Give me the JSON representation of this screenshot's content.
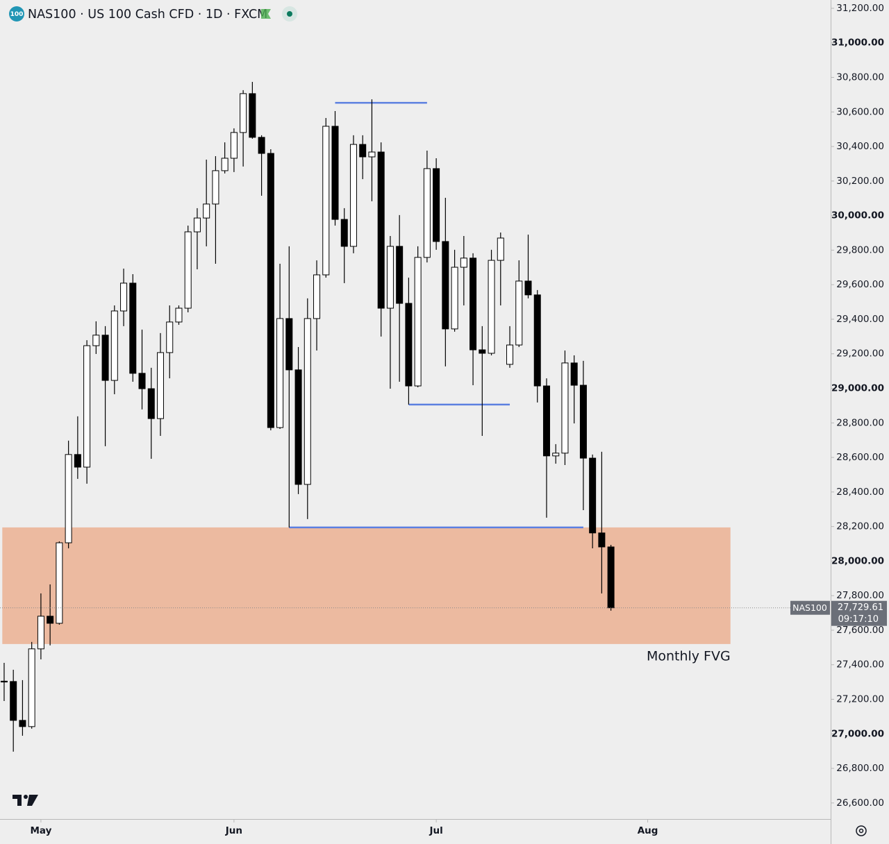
{
  "chart_data": {
    "type": "candlestick",
    "title": "NAS100 · US 100 Cash CFD · 1D · FXCM",
    "symbol_badge": "100",
    "ylim": [
      26507,
      31248
    ],
    "yticks": [
      {
        "value": 26600,
        "label": "26,600.00"
      },
      {
        "value": 26800,
        "label": "26,800.00"
      },
      {
        "value": 27000,
        "label": "27,000.00"
      },
      {
        "value": 27200,
        "label": "27,200.00"
      },
      {
        "value": 27400,
        "label": "27,400.00"
      },
      {
        "value": 27600,
        "label": "27,600.00"
      },
      {
        "value": 27800,
        "label": "27,800.00"
      },
      {
        "value": 28000,
        "label": "28,000.00"
      },
      {
        "value": 28200,
        "label": "28,200.00"
      },
      {
        "value": 28400,
        "label": "28,400.00"
      },
      {
        "value": 28600,
        "label": "28,600.00"
      },
      {
        "value": 28800,
        "label": "28,800.00"
      },
      {
        "value": 29000,
        "label": "29,000.00"
      },
      {
        "value": 29200,
        "label": "29,200.00"
      },
      {
        "value": 29400,
        "label": "29,400.00"
      },
      {
        "value": 29600,
        "label": "29,600.00"
      },
      {
        "value": 29800,
        "label": "29,800.00"
      },
      {
        "value": 30000,
        "label": "30,000.00"
      },
      {
        "value": 30200,
        "label": "30,200.00"
      },
      {
        "value": 30400,
        "label": "30,400.00"
      },
      {
        "value": 30600,
        "label": "30,600.00"
      },
      {
        "value": 30800,
        "label": "30,800.00"
      },
      {
        "value": 31000,
        "label": "31,000.00"
      },
      {
        "value": 31200,
        "label": "31,200.00"
      }
    ],
    "xlim": [
      -0.45,
      89.9
    ],
    "xticks": [
      {
        "value": 4,
        "label": "May"
      },
      {
        "value": 25,
        "label": "Jun"
      },
      {
        "value": 47,
        "label": "Jul"
      },
      {
        "value": 70,
        "label": "Aug"
      }
    ],
    "up_color": "#ffffff",
    "down_color": "#000000",
    "open": [
      27305,
      27303,
      27078,
      27042,
      27492,
      27681,
      27640,
      28106,
      28617,
      28544,
      29247,
      29308,
      29046,
      29448,
      29609,
      29087,
      28998,
      28825,
      29207,
      29384,
      29464,
      29906,
      29986,
      30067,
      30260,
      30332,
      30481,
      30706,
      30453,
      30360,
      28773,
      29404,
      29107,
      28444,
      29404,
      29657,
      30517,
      29978,
      29822,
      30412,
      30340,
      30368,
      29464,
      29822,
      29492,
      29014,
      29758,
      30272,
      29850,
      29344,
      29701,
      29754,
      29223,
      29203,
      29741,
      29139,
      29251,
      29621,
      29541,
      29014,
      28609,
      28625,
      29147,
      29018,
      28596,
      28163,
      28082
    ],
    "high": [
      27411,
      27371,
      27311,
      27532,
      27813,
      27865,
      28114,
      28697,
      28838,
      29279,
      29388,
      29360,
      29480,
      29693,
      29661,
      29340,
      29119,
      29320,
      29480,
      29480,
      29942,
      30043,
      30324,
      30344,
      30424,
      30505,
      30726,
      30774,
      30465,
      30384,
      29721,
      29822,
      29239,
      29521,
      29741,
      30565,
      30605,
      30043,
      30465,
      30465,
      30673,
      30424,
      29882,
      30003,
      29641,
      29822,
      30376,
      30332,
      30103,
      29802,
      29882,
      29782,
      29360,
      29802,
      29902,
      29360,
      29741,
      29890,
      29569,
      29058,
      28677,
      29219,
      29191,
      29159,
      28617,
      28633,
      28094
    ],
    "low": [
      27190,
      26897,
      26989,
      27030,
      27431,
      27512,
      27632,
      28074,
      28476,
      28448,
      29199,
      28665,
      28966,
      29360,
      29038,
      28878,
      28592,
      28725,
      29058,
      29368,
      29440,
      29689,
      29822,
      29721,
      30244,
      30252,
      30284,
      30445,
      30115,
      28757,
      28765,
      28195,
      28388,
      28243,
      29219,
      29641,
      29942,
      29609,
      29782,
      30211,
      30083,
      29300,
      28998,
      29038,
      28906,
      29006,
      29729,
      29802,
      29127,
      29328,
      29480,
      29018,
      28725,
      29191,
      29480,
      29119,
      29239,
      29521,
      28918,
      28251,
      28564,
      28556,
      28797,
      28295,
      28074,
      27813,
      27713
    ],
    "close": [
      27300,
      27078,
      27042,
      27492,
      27681,
      27640,
      28106,
      28617,
      28544,
      29247,
      29308,
      29046,
      29448,
      29609,
      29087,
      28998,
      28825,
      29207,
      29384,
      29464,
      29906,
      29986,
      30067,
      30260,
      30332,
      30481,
      30706,
      30453,
      30360,
      28773,
      29404,
      29107,
      28444,
      29404,
      29657,
      30517,
      29978,
      29822,
      30412,
      30340,
      30368,
      29464,
      29822,
      29492,
      29014,
      29758,
      30272,
      29850,
      29344,
      29701,
      29754,
      29223,
      29203,
      29741,
      29870,
      29251,
      29621,
      29541,
      29014,
      28609,
      28625,
      29147,
      29018,
      28596,
      28163,
      28082,
      27729.61
    ],
    "levels": [
      {
        "value": 30653,
        "x": [
          36,
          46
        ],
        "color": "#5b7fe0"
      },
      {
        "value": 28906,
        "x": [
          44,
          55
        ],
        "color": "#5b7fe0"
      },
      {
        "value": 28195,
        "x": [
          31,
          63
        ],
        "color": "#5b7fe0"
      }
    ],
    "zones": [
      {
        "range": [
          27520,
          28195
        ],
        "x": [
          -0.2,
          79
        ],
        "label": "Monthly FVG",
        "color": "#ecbaa0"
      }
    ],
    "last_price": {
      "symbol": "NAS100",
      "value": 27729.61,
      "label": "27,729.61",
      "countdown": "09:17:10"
    }
  }
}
